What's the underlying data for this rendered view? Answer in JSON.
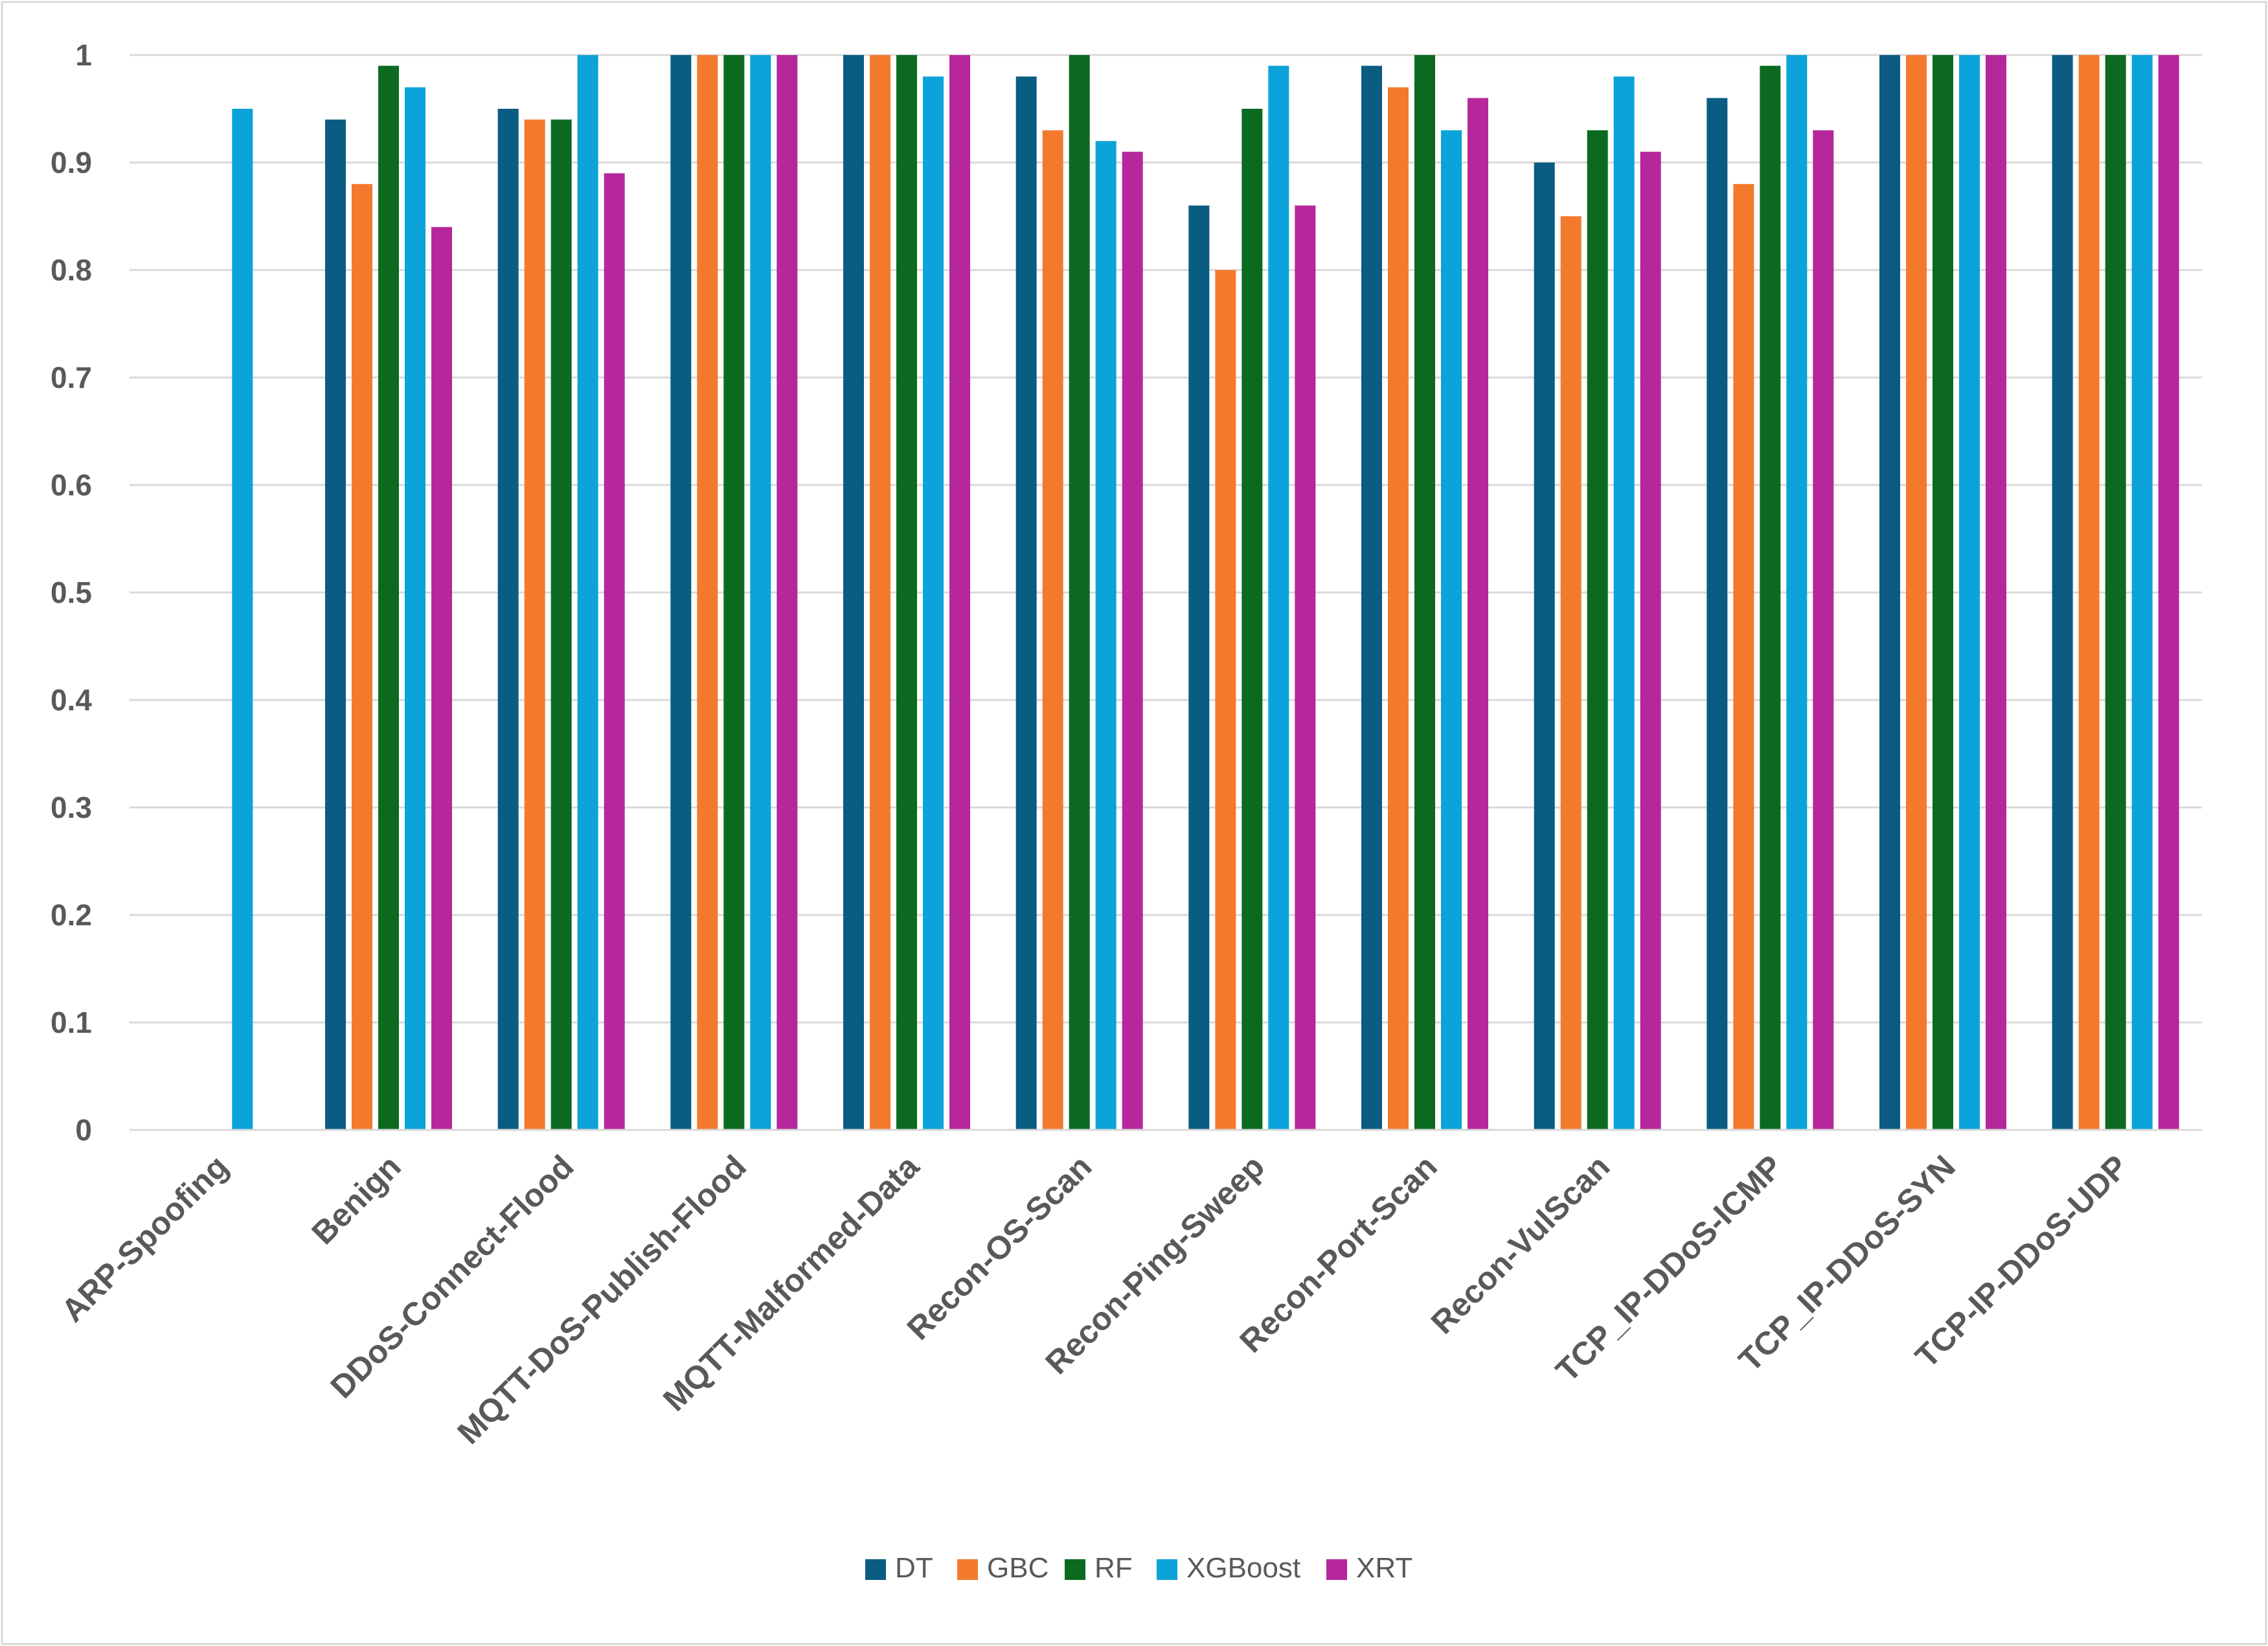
{
  "chart_data": {
    "type": "bar",
    "title": "",
    "xlabel": "",
    "ylabel": "",
    "ylim": [
      0,
      1
    ],
    "ytick_step": 0.1,
    "grid": true,
    "legend_position": "bottom",
    "categories": [
      "ARP-Spoofing",
      "Benign",
      "DDoS-Connect-Flood",
      "MQTT-DoS-Publish-Flood",
      "MQTT-Malformed-Data",
      "Recon-OS-Scan",
      "Recon-Ping-Sweep",
      "Recon-Port-Scan",
      "Recon-VulScan",
      "TCP_IP-DDoS-ICMP",
      "TCP_IP-DDoS-SYN",
      "TCP-IP-DDoS-UDP"
    ],
    "series": [
      {
        "name": "DT",
        "color": "#0a5c82",
        "values": [
          0,
          0.94,
          0.95,
          1,
          1,
          0.98,
          0.86,
          0.99,
          0.9,
          0.96,
          1,
          1
        ]
      },
      {
        "name": "GBC",
        "color": "#f37a2d",
        "values": [
          0,
          0.88,
          0.94,
          1,
          1,
          0.93,
          0.8,
          0.97,
          0.85,
          0.88,
          1,
          1
        ]
      },
      {
        "name": "RF",
        "color": "#0b6a1f",
        "values": [
          0,
          0.99,
          0.94,
          1,
          1,
          1,
          0.95,
          1,
          0.93,
          0.99,
          1,
          1
        ]
      },
      {
        "name": "XGBoost",
        "color": "#0ba3d9",
        "values": [
          0.95,
          0.97,
          1,
          1,
          0.98,
          0.92,
          0.99,
          0.93,
          0.98,
          1,
          1,
          1
        ]
      },
      {
        "name": "XRT",
        "color": "#b5279a",
        "values": [
          0,
          0.84,
          0.89,
          1,
          1,
          0.91,
          0.86,
          0.96,
          0.91,
          0.93,
          1,
          1
        ]
      }
    ]
  }
}
